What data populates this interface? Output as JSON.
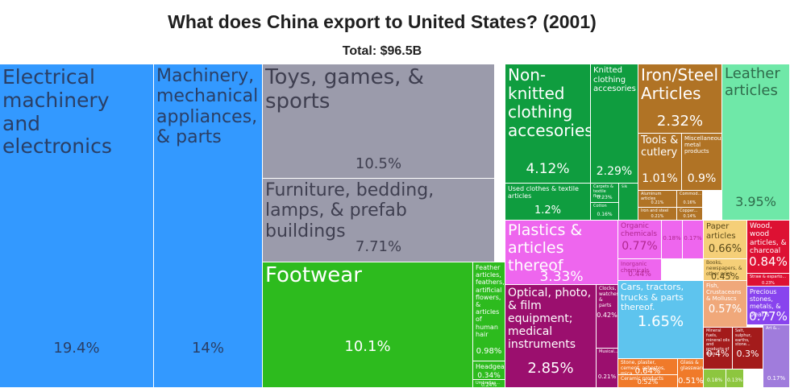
{
  "title": "What does China export to United States? (2001)",
  "subtitle": "Total: $96.5B",
  "chart_data": {
    "type": "treemap",
    "unit": "%",
    "items": [
      {
        "id": "electrical",
        "label": "Electrical machinery and electronics",
        "value": "19.4%",
        "color": "#3399ff",
        "text_color": "#2a3f66"
      },
      {
        "id": "machinery",
        "label": "Machinery, mechanical appliances, & parts",
        "value": "14%",
        "color": "#3399ff",
        "text_color": "#2a3f66"
      },
      {
        "id": "toys",
        "label": "Toys, games, & sports",
        "value": "10.5%",
        "color": "#9b9bab",
        "text_color": "#3f3f50"
      },
      {
        "id": "furniture",
        "label": "Furniture, bedding, lamps, & prefab buildings",
        "value": "7.71%",
        "color": "#9b9bab",
        "text_color": "#3f3f50"
      },
      {
        "id": "footwear",
        "label": "Footwear",
        "value": "10.1%",
        "color": "#2dbb1e",
        "text_color": "#ffffff"
      },
      {
        "id": "feather",
        "label": "Feather articles, feathers, artificial flowers, & articles of human hair",
        "value": "0.98%",
        "color": "#2dbb1e",
        "text_color": "#ffffff"
      },
      {
        "id": "headgear",
        "label": "Headgear",
        "value": "0.34%",
        "color": "#2dbb1e",
        "text_color": "#ffffff"
      },
      {
        "id": "umbrellas",
        "label": "Umbrellas...",
        "value": "0.24%",
        "color": "#2dbb1e",
        "text_color": "#ffffff"
      },
      {
        "id": "nonknitted",
        "label": "Non-knitted clothing accesories",
        "value": "4.12%",
        "color": "#0f9d3f",
        "text_color": "#ffffff"
      },
      {
        "id": "knitted",
        "label": "Knitted clothing accesories",
        "value": "2.29%",
        "color": "#0f9d3f",
        "text_color": "#ffffff"
      },
      {
        "id": "usedclothes",
        "label": "Used clothes & textile articles",
        "value": "1.2%",
        "color": "#0f9d3f",
        "text_color": "#ffffff"
      },
      {
        "id": "carpets",
        "label": "Carpets & textile floo...",
        "value": "0.23%",
        "color": "#0f9d3f",
        "text_color": "#ffffff"
      },
      {
        "id": "cotton",
        "label": "Cotton",
        "value": "0.16%",
        "color": "#0f9d3f",
        "text_color": "#ffffff"
      },
      {
        "id": "silk",
        "label": "Silk",
        "value": "",
        "color": "#0f9d3f",
        "text_color": "#ffffff"
      },
      {
        "id": "ironsteel",
        "label": "Iron/Steel Articles",
        "value": "2.32%",
        "color": "#b07325",
        "text_color": "#ffffff"
      },
      {
        "id": "tools",
        "label": "Tools & cutlery",
        "value": "1.01%",
        "color": "#b07325",
        "text_color": "#ffffff"
      },
      {
        "id": "miscmetal",
        "label": "Miscellaneous metal products",
        "value": "0.9%",
        "color": "#b07325",
        "text_color": "#ffffff"
      },
      {
        "id": "aluminum",
        "label": "Aluminum articles",
        "value": "0.21%",
        "color": "#b07325",
        "text_color": "#ffffff"
      },
      {
        "id": "commod",
        "label": "Commod...",
        "value": "0.16%",
        "color": "#b07325",
        "text_color": "#ffffff"
      },
      {
        "id": "ironsteel2",
        "label": "Iron and steel",
        "value": "0.21%",
        "color": "#b07325",
        "text_color": "#ffffff"
      },
      {
        "id": "copper",
        "label": "Copper...",
        "value": "0.14%",
        "color": "#b07325",
        "text_color": "#ffffff"
      },
      {
        "id": "leather",
        "label": "Leather articles",
        "value": "3.95%",
        "color": "#6fe8a8",
        "text_color": "#2f6b4b"
      },
      {
        "id": "plastics",
        "label": "Plastics & articles thereof",
        "value": "3.33%",
        "color": "#ee66ee",
        "text_color": "#ffffff"
      },
      {
        "id": "optical",
        "label": "Optical, photo, & film equipment; medical instruments",
        "value": "2.85%",
        "color": "#9b0f6e",
        "text_color": "#ffffff"
      },
      {
        "id": "clocks",
        "label": "Clocks, watches, & parts",
        "value": "0.42%",
        "color": "#9b0f6e",
        "text_color": "#ffffff"
      },
      {
        "id": "musical",
        "label": "Musical...",
        "value": "0.21%",
        "color": "#9b0f6e",
        "text_color": "#ffffff"
      },
      {
        "id": "organic",
        "label": "Organic chemicals",
        "value": "0.77%",
        "color": "#ee66ee",
        "text_color": "#b0278f"
      },
      {
        "id": "inorganic",
        "label": "Inorganic chemicals",
        "value": "0.44%",
        "color": "#ee66ee",
        "text_color": "#b0278f"
      },
      {
        "id": "chem_a",
        "label": "",
        "value": "0.18%",
        "color": "#ee66ee",
        "text_color": "#b0278f"
      },
      {
        "id": "chem_b",
        "label": "",
        "value": "0.17%",
        "color": "#ee66ee",
        "text_color": "#b0278f"
      },
      {
        "id": "cars",
        "label": "Cars, tractors, trucks & parts thereof.",
        "value": "1.65%",
        "color": "#5ec4ee",
        "text_color": "#ffffff"
      },
      {
        "id": "stone",
        "label": "Stone, plaster, cement, asbestos, mica",
        "value": "0.64%",
        "color": "#f07a2a",
        "text_color": "#ffffff"
      },
      {
        "id": "glass",
        "label": "Glass & glassware",
        "value": "0.51%",
        "color": "#f07a2a",
        "text_color": "#ffffff"
      },
      {
        "id": "ceramic",
        "label": "Ceramic products",
        "value": "0.52%",
        "color": "#f07a2a",
        "text_color": "#ffffff"
      },
      {
        "id": "paper",
        "label": "Paper articles",
        "value": "0.66%",
        "color": "#f5cf78",
        "text_color": "#5a4a1a"
      },
      {
        "id": "books",
        "label": "Books, newspapers, & other print",
        "value": "0.45%",
        "color": "#f5cf78",
        "text_color": "#5a4a1a"
      },
      {
        "id": "fish",
        "label": "Fish, Crustaceans & Molluscs",
        "value": "0.57%",
        "color": "#f0a87a",
        "text_color": "#ffffff"
      },
      {
        "id": "wood",
        "label": "Wood, wood articles, & charcoal",
        "value": "0.84%",
        "color": "#dd1133",
        "text_color": "#ffffff"
      },
      {
        "id": "straw",
        "label": "Straw & esparto...",
        "value": "0.23%",
        "color": "#dd1133",
        "text_color": "#ffffff"
      },
      {
        "id": "precious",
        "label": "Precious stones, metals, & pearls",
        "value": "0.77%",
        "color": "#8844ee",
        "text_color": "#ffffff"
      },
      {
        "id": "mineralfuels",
        "label": "Mineral fuels, mineral oils and products of their...",
        "value": "0.4%",
        "color": "#a31b1b",
        "text_color": "#ffffff"
      },
      {
        "id": "salt",
        "label": "Salt, sulphur, earths, stone...",
        "value": "0.3%",
        "color": "#a31b1b",
        "text_color": "#ffffff"
      },
      {
        "id": "veg_a",
        "label": "",
        "value": "0.18%",
        "color": "#8dc63f",
        "text_color": "#ffffff"
      },
      {
        "id": "veg_b",
        "label": "",
        "value": "0.13%",
        "color": "#8dc63f",
        "text_color": "#ffffff"
      },
      {
        "id": "artworks",
        "label": "Art &...",
        "value": "0.17%",
        "color": "#a07cdc",
        "text_color": "#ffffff"
      }
    ]
  }
}
